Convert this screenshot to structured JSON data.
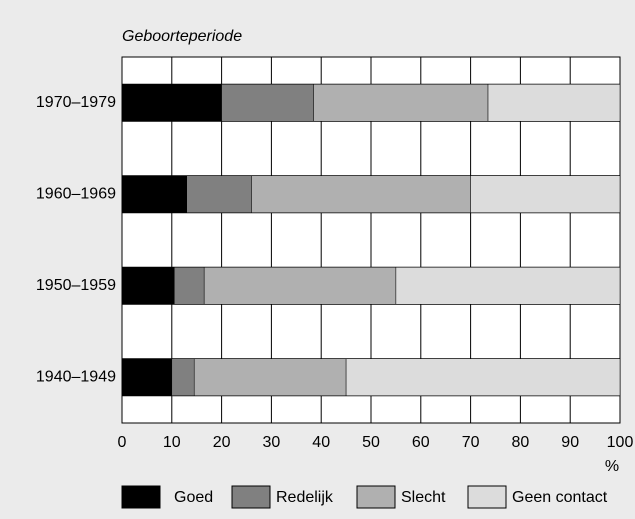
{
  "chart_data": {
    "type": "stacked_barh",
    "title": "Geboorteperiode",
    "xlabel": "%",
    "categories": [
      "1970–1979",
      "1960–1969",
      "1950–1959",
      "1940–1949"
    ],
    "series": [
      {
        "name": "Goed",
        "color": "#000000",
        "values": [
          20,
          13,
          10.5,
          10
        ]
      },
      {
        "name": "Redelijk",
        "color": "#808080",
        "values": [
          18.5,
          13,
          6,
          4.5
        ]
      },
      {
        "name": "Slecht",
        "color": "#b0b0b0",
        "values": [
          35,
          44,
          38.5,
          30.5
        ]
      },
      {
        "name": "Geen contact",
        "color": "#dcdcdc",
        "values": [
          26.5,
          30,
          45,
          55
        ]
      }
    ],
    "xlim": [
      0,
      100
    ],
    "xticks": [
      0,
      10,
      20,
      30,
      40,
      50,
      60,
      70,
      80,
      90,
      100
    ],
    "grid": true
  }
}
